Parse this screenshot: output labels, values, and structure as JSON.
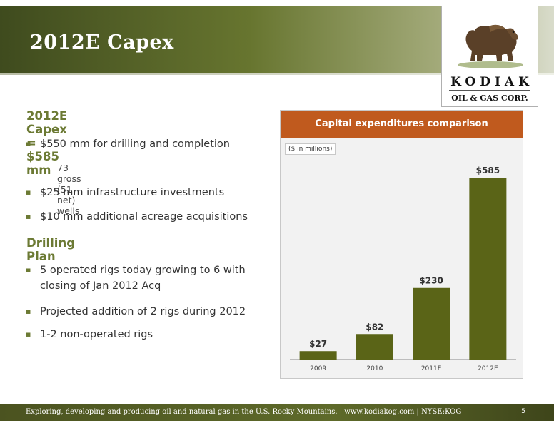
{
  "slide": {
    "title": "2012E Capex"
  },
  "logo": {
    "name": "KODIAK",
    "subtitle": "OIL & GAS CORP."
  },
  "content": {
    "section1": {
      "heading": "2012E Capex = $585 mm",
      "bullet1": "$550 mm for drilling and completion",
      "sub1": "73 gross (51 net) wells",
      "bullet2": "$25 mm infrastructure investments",
      "bullet3": "$10 mm additional acreage acquisitions"
    },
    "section2": {
      "heading": "Drilling Plan",
      "bullet1": "5 operated rigs today growing to 6 with closing of Jan 2012 Acq",
      "bullet2": "Projected addition of 2 rigs during 2012",
      "bullet3": "1-2 non-operated rigs"
    }
  },
  "chart_data": {
    "type": "bar",
    "title": "Capital expenditures comparison",
    "unit_note": "($ in millions)",
    "categories": [
      "2009",
      "2010",
      "2011E",
      "2012E"
    ],
    "values": [
      27,
      82,
      230,
      585
    ],
    "data_labels": [
      "$27",
      "$82",
      "$230",
      "$585"
    ],
    "ylim": [
      0,
      585
    ],
    "grid": false,
    "legend": "none",
    "bar_color": "#5a6417",
    "header_color": "#c05a1e"
  },
  "footer": {
    "text": "Exploring, developing and producing oil and natural gas in the U.S. Rocky Mountains.  |  www.kodiakog.com  |  NYSE:KOG",
    "page_number": "5"
  }
}
